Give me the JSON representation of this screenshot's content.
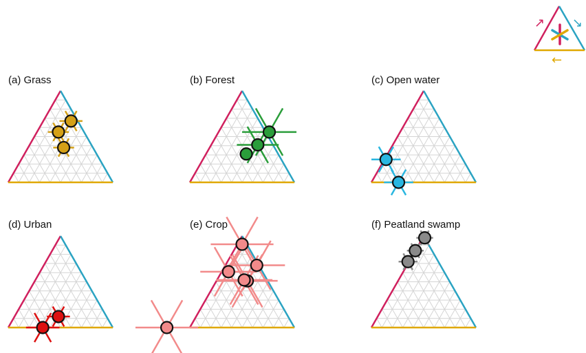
{
  "colors": {
    "left_edge": "#d0205e",
    "right_edge": "#2aa3c2",
    "bottom_edge": "#e0a800",
    "grid": "#d4d4d4",
    "marker_stroke": "#111111"
  },
  "legend": {
    "icon": "ternary-axis-direction-legend",
    "arrows": [
      "↗",
      "↘",
      "←"
    ]
  },
  "chart_data": [
    {
      "type": "scatter",
      "subtype": "ternary",
      "title": "(a) Grass",
      "color": "#d4a017",
      "points": [
        {
          "x": 0.6,
          "y": 0.67,
          "spread": 0.11
        },
        {
          "x": 0.48,
          "y": 0.55,
          "spread": 0.1
        },
        {
          "x": 0.53,
          "y": 0.38,
          "spread": 0.1
        }
      ]
    },
    {
      "type": "scatter",
      "subtype": "ternary",
      "title": "(b) Forest",
      "color": "#2a9d3a",
      "points": [
        {
          "x": 0.76,
          "y": 0.55,
          "spread": 0.26
        },
        {
          "x": 0.65,
          "y": 0.41,
          "spread": 0.2
        },
        {
          "x": 0.54,
          "y": 0.31,
          "spread": 0.06
        }
      ]
    },
    {
      "type": "scatter",
      "subtype": "ternary",
      "title": "(c) Open water",
      "color": "#29b6e0",
      "points": [
        {
          "x": 0.14,
          "y": 0.25,
          "spread": 0.14
        },
        {
          "x": 0.26,
          "y": 0.0,
          "spread": 0.14
        }
      ]
    },
    {
      "type": "scatter",
      "subtype": "ternary",
      "title": "(d) Urban",
      "color": "#dd1111",
      "points": [
        {
          "x": 0.48,
          "y": 0.12,
          "spread": 0.11
        },
        {
          "x": 0.33,
          "y": 0.0,
          "spread": 0.16
        }
      ]
    },
    {
      "type": "scatter",
      "subtype": "ternary",
      "title": "(e) Crop",
      "color": "#f28a8a",
      "points": [
        {
          "x": 0.5,
          "y": 0.91,
          "spread": 0.3
        },
        {
          "x": 0.64,
          "y": 0.68,
          "spread": 0.27
        },
        {
          "x": 0.37,
          "y": 0.61,
          "spread": 0.27
        },
        {
          "x": 0.55,
          "y": 0.51,
          "spread": 0.29
        },
        {
          "x": 0.52,
          "y": 0.52,
          "spread": 0.27
        },
        {
          "x": -0.22,
          "y": 0.0,
          "spread": 0.3
        }
      ]
    },
    {
      "type": "scatter",
      "subtype": "ternary",
      "title": "(f) Peatland swamp",
      "color": "#8a8a8a",
      "points": [
        {
          "x": 0.51,
          "y": 0.98,
          "spread": 0.08
        },
        {
          "x": 0.42,
          "y": 0.84,
          "spread": 0.08
        },
        {
          "x": 0.35,
          "y": 0.72,
          "spread": 0.09
        }
      ]
    }
  ]
}
